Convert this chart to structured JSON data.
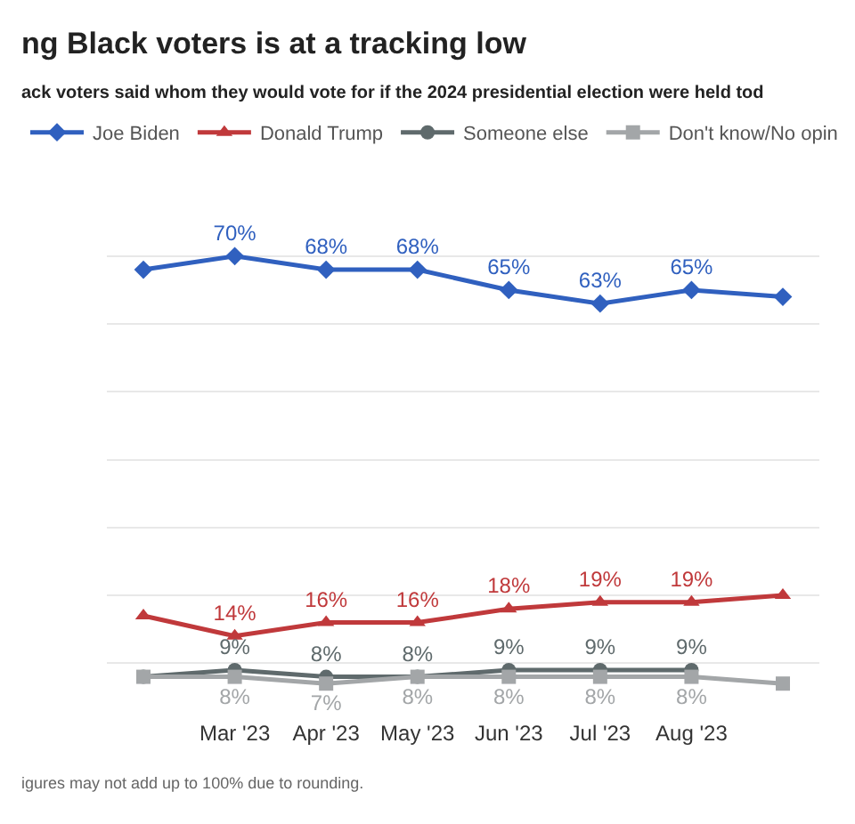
{
  "chart_data": {
    "type": "line",
    "title": "ng Black voters is at a tracking low",
    "subtitle": "ack voters said whom they would vote for if the 2024 presidential election were held tod",
    "categories": [
      null,
      "Mar '23",
      "Apr '23",
      "May '23",
      "Jun '23",
      "Jul '23",
      "Aug '23",
      null
    ],
    "tick_labels": "x",
    "grid": "y",
    "legend": "top",
    "line_style": "solid",
    "series": [
      {
        "name": "Joe Biden",
        "color": "#3060bf",
        "marker": "diamond",
        "values": [
          68,
          70,
          68,
          68,
          65,
          63,
          65,
          64
        ],
        "value_labels": [
          null,
          "70%",
          "68%",
          "68%",
          "65%",
          "63%",
          "65%",
          null
        ]
      },
      {
        "name": "Donald Trump",
        "color": "#c0393b",
        "marker": "triangle",
        "values": [
          17,
          14,
          16,
          16,
          18,
          19,
          19,
          20
        ],
        "value_labels": [
          null,
          "14%",
          "16%",
          "16%",
          "18%",
          "19%",
          "19%",
          null
        ]
      },
      {
        "name": "Someone else",
        "color": "#5f6a6c",
        "marker": "circle",
        "values": [
          8,
          9,
          8,
          8,
          9,
          9,
          9,
          null
        ],
        "value_labels": [
          null,
          "9%",
          "8%",
          "8%",
          "9%",
          "9%",
          "9%",
          null
        ]
      },
      {
        "name": "Don't know/No opin",
        "color": "#a3a6a8",
        "marker": "square",
        "values": [
          8,
          8,
          7,
          8,
          8,
          8,
          8,
          7
        ],
        "value_labels": [
          null,
          "8%",
          "7%",
          "8%",
          "8%",
          "8%",
          "8%",
          null
        ]
      }
    ],
    "annotations": [
      "igures may not add up to 100% due to rounding."
    ]
  }
}
